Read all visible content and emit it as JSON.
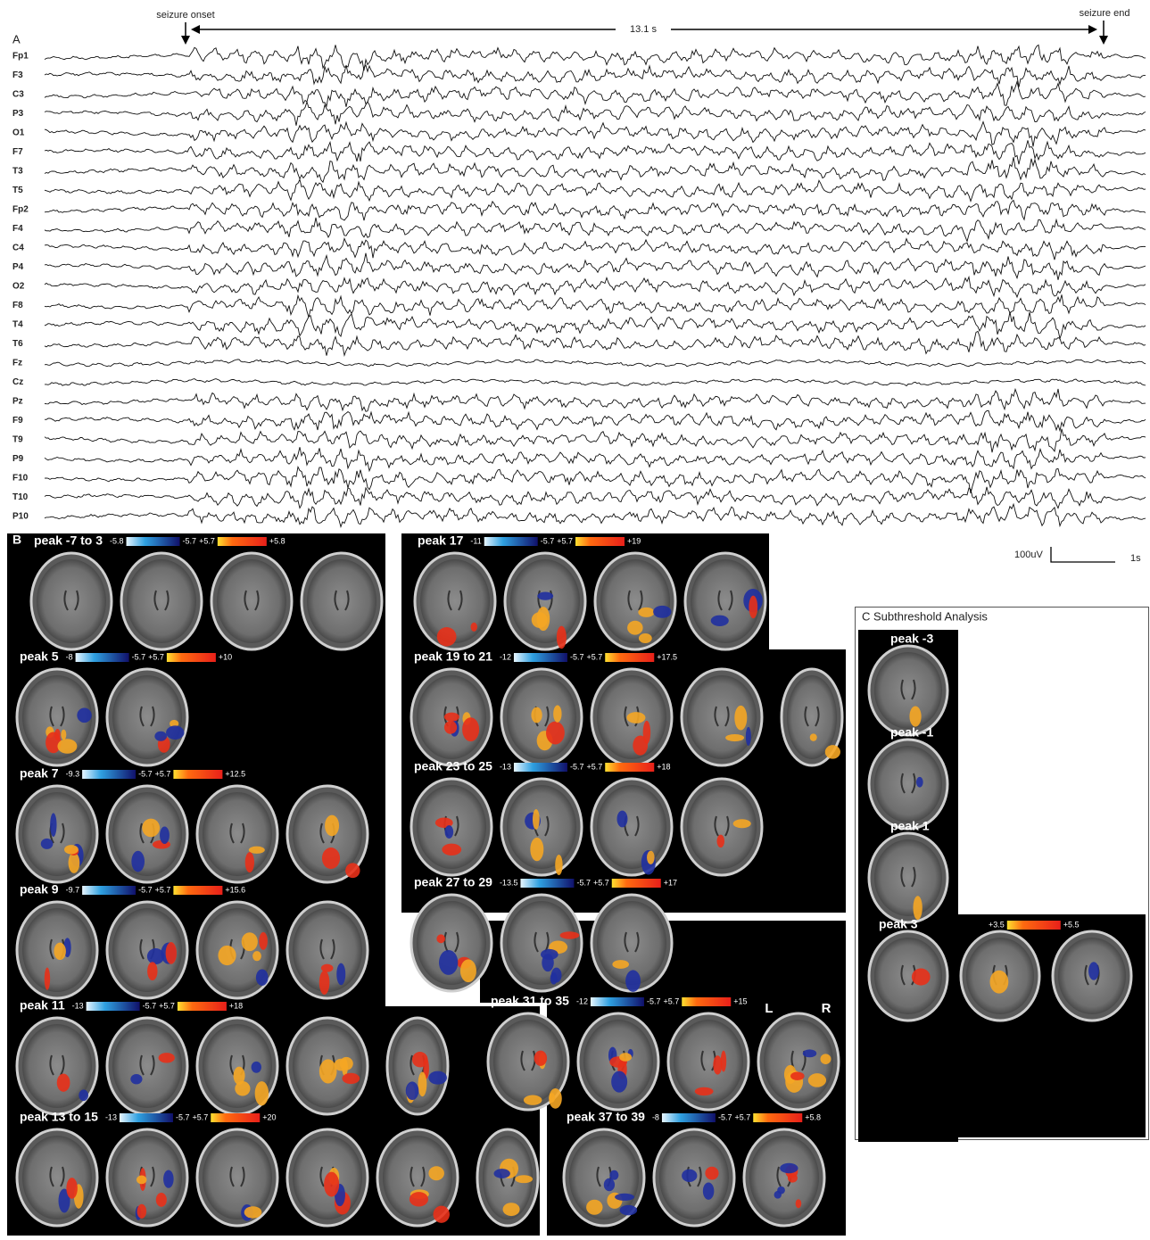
{
  "panel_a": {
    "label": "A",
    "onset": "seizure onset",
    "end": "seizure end",
    "duration": "13.1 s",
    "channels": [
      "Fp1",
      "F3",
      "C3",
      "P3",
      "O1",
      "F7",
      "T3",
      "T5",
      "Fp2",
      "F4",
      "C4",
      "P4",
      "O2",
      "F8",
      "T4",
      "T6",
      "Fz",
      "Cz",
      "Pz",
      "F9",
      "T9",
      "P9",
      "F10",
      "T10",
      "P10"
    ],
    "scale_amplitude": "100uV",
    "scale_time": "1s"
  },
  "panel_b": {
    "label": "B",
    "left": "L",
    "right": "R",
    "panels": [
      {
        "title": "peak -7 to 3",
        "scale": [
          "-5.8",
          "-5.7",
          "+5.7",
          "+5.8"
        ]
      },
      {
        "title": "peak 5",
        "scale": [
          "-8",
          "-5.7",
          "+5.7",
          "+10"
        ]
      },
      {
        "title": "peak 7",
        "scale": [
          "-9.3",
          "-5.7",
          "+5.7",
          "+12.5"
        ]
      },
      {
        "title": "peak 9",
        "scale": [
          "-9.7",
          "-5.7",
          "+5.7",
          "+15.6"
        ]
      },
      {
        "title": "peak 11",
        "scale": [
          "-13",
          "-5.7",
          "+5.7",
          "+18"
        ]
      },
      {
        "title": "peak 13 to 15",
        "scale": [
          "-13",
          "-5.7",
          "+5.7",
          "+20"
        ]
      },
      {
        "title": "peak 17",
        "scale": [
          "-11",
          "-5.7",
          "+5.7",
          "+19"
        ]
      },
      {
        "title": "peak 19 to 21",
        "scale": [
          "-12",
          "-5.7",
          "+5.7",
          "+17.5"
        ]
      },
      {
        "title": "peak 23 to 25",
        "scale": [
          "-13",
          "-5.7",
          "+5.7",
          "+18"
        ]
      },
      {
        "title": "peak 27 to 29",
        "scale": [
          "-13.5",
          "-5.7",
          "+5.7",
          "+17"
        ]
      },
      {
        "title": "peak 31 to 35",
        "scale": [
          "-12",
          "-5.7",
          "+5.7",
          "+15"
        ]
      },
      {
        "title": "peak 37 to 39",
        "scale": [
          "-8",
          "-5.7",
          "+5.7",
          "+5.8"
        ]
      }
    ]
  },
  "panel_c": {
    "title": "C Subthreshold Analysis",
    "panels": [
      {
        "title": "peak -3"
      },
      {
        "title": "peak -1"
      },
      {
        "title": "peak 1"
      },
      {
        "title": "peak 3",
        "scale": [
          "+3.5",
          "+5.5"
        ]
      }
    ]
  }
}
